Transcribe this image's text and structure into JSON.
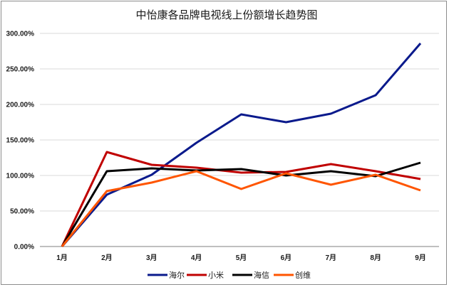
{
  "chart_data": {
    "type": "line",
    "title": "中怡康各品牌电视线上份额增长趋势图",
    "categories": [
      "1月",
      "2月",
      "3月",
      "4月",
      "5月",
      "6月",
      "7月",
      "8月",
      "9月"
    ],
    "y_tick_labels": [
      "0.00%",
      "50.00%",
      "100.00%",
      "150.00%",
      "200.00%",
      "250.00%",
      "300.00%"
    ],
    "ylim": [
      0,
      300
    ],
    "grid": true,
    "legend_position": "bottom",
    "series": [
      {
        "name": "海尔",
        "color": "#0a1a8c",
        "values": [
          0,
          73,
          101,
          146,
          186,
          175,
          187,
          213,
          286
        ]
      },
      {
        "name": "小米",
        "color": "#c00000",
        "values": [
          0,
          133,
          115,
          111,
          104,
          105,
          116,
          106,
          95
        ]
      },
      {
        "name": "海信",
        "color": "#000000",
        "values": [
          0,
          106,
          110,
          107,
          109,
          100,
          106,
          99,
          118
        ]
      },
      {
        "name": "创维",
        "color": "#ff5500",
        "values": [
          0,
          78,
          90,
          106,
          81,
          103,
          87,
          101,
          79
        ]
      }
    ]
  }
}
